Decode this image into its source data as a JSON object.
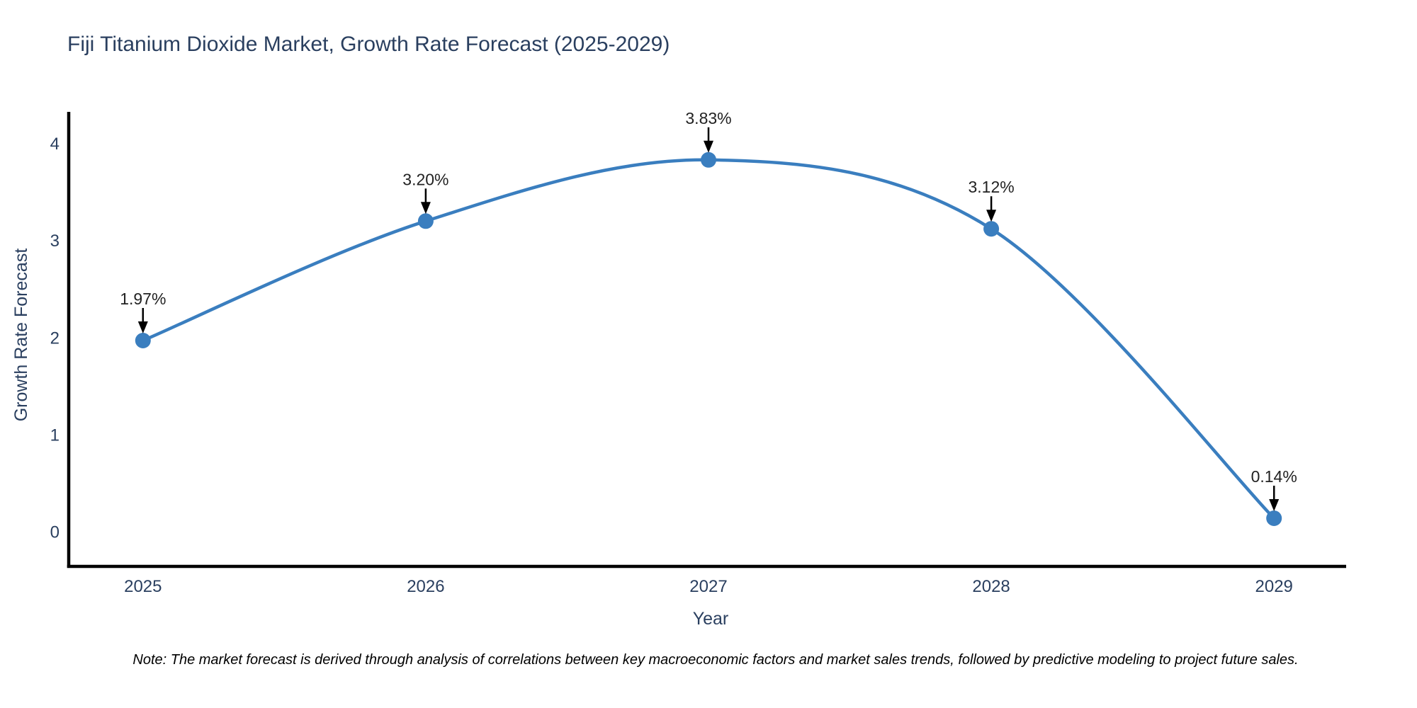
{
  "title": "Fiji Titanium Dioxide Market, Growth Rate Forecast (2025-2029)",
  "note": "Note: The market forecast is derived through analysis of correlations between key macroeconomic factors and market sales trends, followed by predictive modeling to project future sales.",
  "chart_data": {
    "type": "line",
    "title": "Fiji Titanium Dioxide Market, Growth Rate Forecast (2025-2029)",
    "xlabel": "Year",
    "ylabel": "Growth Rate Forecast",
    "x": [
      2025,
      2026,
      2027,
      2028,
      2029
    ],
    "series": [
      {
        "name": "Growth Rate Forecast",
        "values": [
          1.97,
          3.2,
          3.83,
          3.12,
          0.14
        ]
      }
    ],
    "annotations": [
      "1.97%",
      "3.20%",
      "3.83%",
      "3.12%",
      "0.14%"
    ],
    "xtick_labels": [
      "2025",
      "2026",
      "2027",
      "2028",
      "2029"
    ],
    "ytick_values": [
      0,
      1,
      2,
      3,
      4
    ],
    "ytick_labels": [
      "0",
      "1",
      "2",
      "3",
      "4"
    ],
    "xlim": [
      2024.735,
      2029.255
    ],
    "ylim": [
      -0.37,
      4.31
    ],
    "line_shape": "spline",
    "grid": false,
    "legend": "none",
    "colors": {
      "line": "#3A7EBF",
      "marker": "#3A7EBF",
      "axis": "#000000",
      "text": "#2a3f5f",
      "annotation_text": "#222222",
      "arrow": "#000000",
      "background": "#ffffff"
    }
  }
}
